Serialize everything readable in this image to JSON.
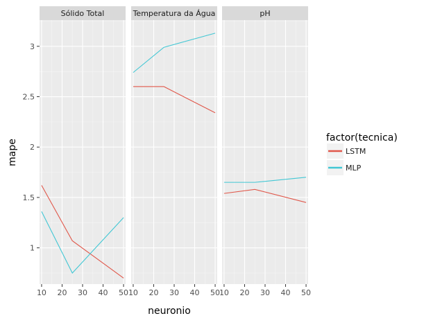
{
  "chart_data": {
    "type": "line",
    "xlabel": "neuronio",
    "ylabel": "mape",
    "x_ticks": [
      10,
      20,
      30,
      40,
      50
    ],
    "y_ticks": [
      1,
      1.5,
      2,
      2.5,
      3
    ],
    "y_tick_labels": [
      "1",
      "1.5",
      "2",
      "2.5",
      "3"
    ],
    "xlim": [
      9,
      51
    ],
    "ylim": [
      0.64,
      3.26
    ],
    "grid": true,
    "legend": {
      "title": "factor(tecnica)",
      "placement": "right",
      "entries": [
        {
          "name": "LSTM",
          "color": "#e0574a"
        },
        {
          "name": "MLP",
          "color": "#41c7d4"
        }
      ]
    },
    "panels": [
      {
        "title": "Sólido Total",
        "series": [
          {
            "name": "LSTM",
            "x": [
              10,
              25,
              50
            ],
            "y": [
              1.62,
              1.07,
              0.7
            ]
          },
          {
            "name": "MLP",
            "x": [
              10,
              25,
              50
            ],
            "y": [
              1.36,
              0.75,
              1.3
            ]
          }
        ]
      },
      {
        "title": "Temperatura da Água",
        "series": [
          {
            "name": "LSTM",
            "x": [
              10,
              25,
              50
            ],
            "y": [
              2.6,
              2.6,
              2.34
            ]
          },
          {
            "name": "MLP",
            "x": [
              10,
              25,
              50
            ],
            "y": [
              2.74,
              2.99,
              3.13
            ]
          }
        ]
      },
      {
        "title": "pH",
        "series": [
          {
            "name": "LSTM",
            "x": [
              10,
              25,
              50
            ],
            "y": [
              1.54,
              1.58,
              1.45
            ]
          },
          {
            "name": "MLP",
            "x": [
              10,
              25,
              50
            ],
            "y": [
              1.65,
              1.65,
              1.7
            ]
          }
        ]
      }
    ]
  }
}
